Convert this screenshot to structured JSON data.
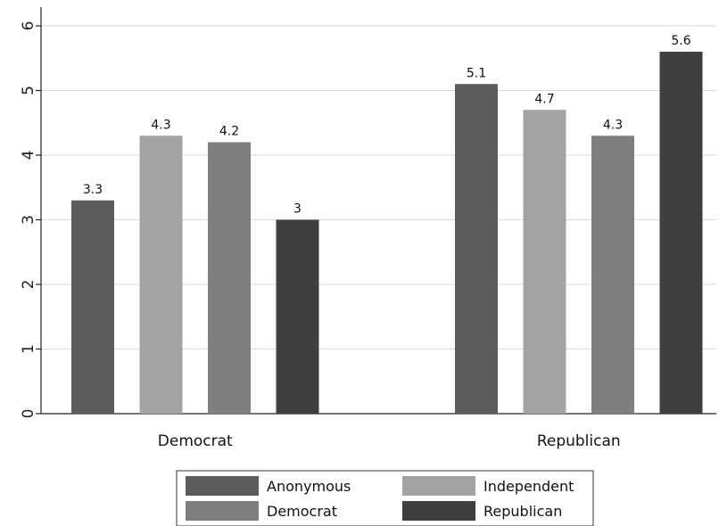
{
  "chart_data": {
    "type": "bar",
    "categories": [
      "Democrat",
      "Republican"
    ],
    "series": [
      {
        "name": "Anonymous",
        "color": "#5c5c5c",
        "values": [
          3.3,
          5.1
        ],
        "labels": [
          "3.3",
          "5.1"
        ]
      },
      {
        "name": "Independent",
        "color": "#a3a3a3",
        "values": [
          4.3,
          4.7
        ],
        "labels": [
          "4.3",
          "4.7"
        ]
      },
      {
        "name": "Democrat",
        "color": "#7f7f7f",
        "values": [
          4.2,
          4.3
        ],
        "labels": [
          "4.2",
          "4.3"
        ]
      },
      {
        "name": "Republican",
        "color": "#3f3f3f",
        "values": [
          3.0,
          5.6
        ],
        "labels": [
          "3",
          "5.6"
        ]
      }
    ],
    "ylim": [
      0,
      6
    ],
    "yticks": [
      "0",
      "1",
      "2",
      "3",
      "4",
      "5",
      "6"
    ],
    "title": "",
    "xlabel": "",
    "ylabel": "",
    "grid": true,
    "legend_position": "bottom"
  }
}
